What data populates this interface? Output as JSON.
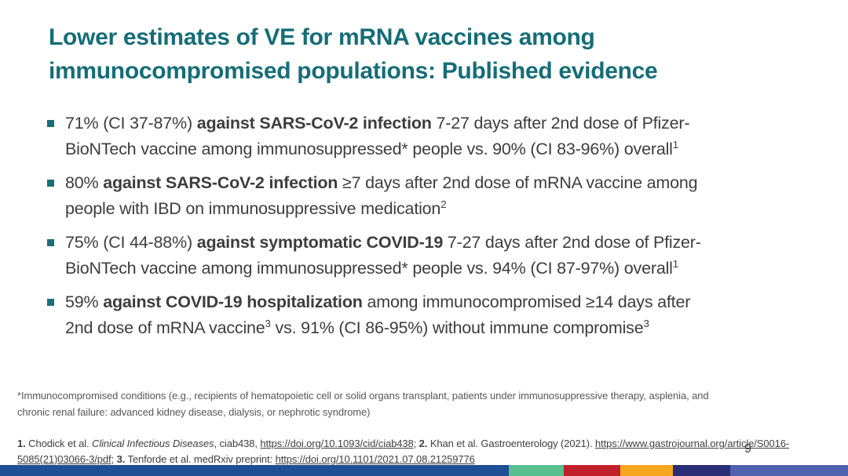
{
  "title": {
    "text": "Lower estimates of VE for mRNA vaccines among immunocompromised populations: Published evidence",
    "color": "#156d78"
  },
  "page_number": "9",
  "colors": {
    "bullet_square": "#1a6f7a",
    "body_text": "#3d3d3d",
    "footnote_gray": "#575757"
  },
  "bullets": [
    {
      "lines": [
        [
          {
            "text": "71% (CI 37-87%) "
          },
          {
            "text": "against SARS-CoV-2 infection",
            "bold": true
          },
          {
            "text": " 7-27 days after 2nd dose of Pfizer-"
          }
        ],
        [
          {
            "text": "BioNTech vaccine among immunosuppressed* people vs. 90% (CI 83-96%) overall"
          },
          {
            "text": "1",
            "sup": true
          }
        ]
      ]
    },
    {
      "lines": [
        [
          {
            "text": "80% "
          },
          {
            "text": "against SARS-CoV-2 infection",
            "bold": true
          },
          {
            "text": " ≥7 days after 2nd dose of mRNA vaccine among"
          }
        ],
        [
          {
            "text": "people with IBD on immunosuppressive medication"
          },
          {
            "text": "2",
            "sup": true
          }
        ]
      ]
    },
    {
      "lines": [
        [
          {
            "text": "75% (CI 44-88%) "
          },
          {
            "text": "against symptomatic COVID-19",
            "bold": true
          },
          {
            "text": " 7-27 days after 2nd dose of Pfizer-"
          }
        ],
        [
          {
            "text": "BioNTech vaccine among immunosuppressed* people vs. 94% (CI 87-97%) overall"
          },
          {
            "text": "1",
            "sup": true
          }
        ]
      ]
    },
    {
      "lines": [
        [
          {
            "text": "59% "
          },
          {
            "text": "against COVID-19 hospitalization",
            "bold": true
          },
          {
            "text": " among immunocompromised ≥14 days after"
          }
        ],
        [
          {
            "text": "2nd dose of mRNA vaccine"
          },
          {
            "text": "3",
            "sup": true
          },
          {
            "text": " vs. 91% (CI 86-95%) without immune compromise"
          },
          {
            "text": "3",
            "sup": true
          }
        ]
      ]
    }
  ],
  "footnote": {
    "lines": [
      "*Immunocompromised conditions (e.g., recipients of hematopoietic cell or solid organs transplant, patients under immunosuppressive therapy, asplenia, and",
      "chronic renal failure: advanced kidney disease, dialysis, or nephrotic syndrome)"
    ]
  },
  "references": {
    "lines": [
      [
        {
          "text": "1.",
          "bold": true
        },
        {
          "text": " Chodick et al. "
        },
        {
          "text": "Clinical Infectious Diseases",
          "italic": true
        },
        {
          "text": ", ciab438, "
        },
        {
          "text": "https://doi.org/10.1093/cid/ciab438;",
          "link": true
        },
        {
          "text": " "
        },
        {
          "text": "2.",
          "bold": true
        },
        {
          "text": " Khan et al. Gastroenterology (2021). "
        },
        {
          "text": "https://www.gastrojournal.org/article/S0016-",
          "link": true
        }
      ],
      [
        {
          "text": "5085(21)03066-3/pdf",
          "link": true
        },
        {
          "text": "; "
        },
        {
          "text": "3.",
          "bold": true
        },
        {
          "text": " Tenforde et al. medRxiv preprint: "
        },
        {
          "text": "https://doi.org/10.1101/2021.07.08.21259776",
          "link": true
        }
      ]
    ]
  },
  "footer_bar": {
    "segments": [
      {
        "name": "blue",
        "color": "#1e4e94",
        "width_pct": 60.0
      },
      {
        "name": "green",
        "color": "#58bf90",
        "width_pct": 6.5
      },
      {
        "name": "red",
        "color": "#c1202a",
        "width_pct": 6.65
      },
      {
        "name": "amber",
        "color": "#f6a71f",
        "width_pct": 6.2
      },
      {
        "name": "navy",
        "color": "#2b2e74",
        "width_pct": 6.75
      },
      {
        "name": "periwinkle",
        "color": "#5062ae",
        "width_pct": 13.9
      }
    ]
  }
}
